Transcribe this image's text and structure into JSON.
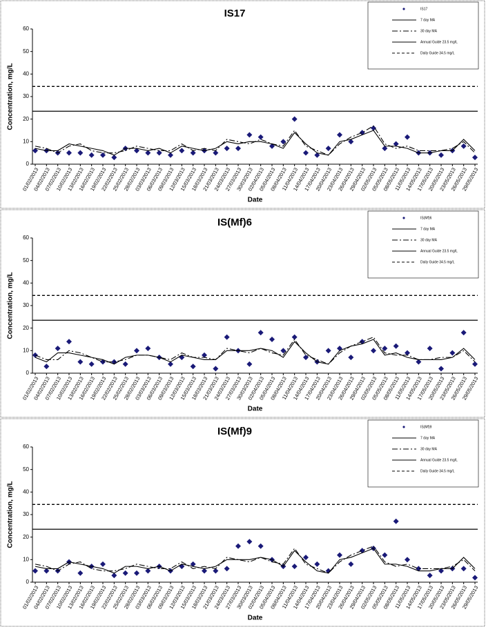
{
  "chart_data": [
    {
      "type": "line",
      "title": "IS17",
      "xlabel": "Date",
      "ylabel": "Concentration, mg/L",
      "categories": [
        "01/02/2013",
        "04/02/2013",
        "07/02/2013",
        "10/02/2013",
        "13/02/2013",
        "16/02/2013",
        "19/02/2013",
        "22/02/2013",
        "25/02/2013",
        "28/02/2013",
        "03/03/2013",
        "06/03/2013",
        "09/03/2013",
        "12/03/2013",
        "15/03/2013",
        "18/03/2013",
        "21/03/2013",
        "24/03/2013",
        "27/03/2013",
        "30/03/2013",
        "02/04/2013",
        "05/04/2013",
        "08/04/2013",
        "11/04/2013",
        "14/04/2013",
        "17/04/2013",
        "20/04/2013",
        "23/04/2013",
        "26/04/2013",
        "29/04/2013",
        "02/05/2013",
        "05/05/2013",
        "08/05/2013",
        "11/05/2013",
        "14/05/2013",
        "17/05/2013",
        "20/05/2013",
        "23/05/2013",
        "26/05/2013",
        "29/05/2013"
      ],
      "ylim": [
        0,
        60
      ],
      "yticks": [
        0,
        10,
        20,
        30,
        40,
        50,
        60
      ],
      "hlines": [
        {
          "name": "Annual Guide 23.5 mg/L",
          "value": 23.5,
          "dash": "none"
        },
        {
          "name": "Daily Guide 34.5 mg/L",
          "value": 34.5,
          "dash": "4 3"
        }
      ],
      "series": [
        {
          "name": "IS17",
          "style": "marker",
          "color": "#1a1a78",
          "values": [
            6,
            6,
            5,
            5,
            5,
            4,
            4,
            3,
            7,
            6,
            5,
            5,
            4,
            6,
            5,
            6,
            5,
            7,
            7,
            13,
            12,
            8,
            10,
            20,
            5,
            4,
            7,
            13,
            10,
            14,
            16,
            7,
            9,
            12,
            5,
            5,
            4,
            6,
            8,
            3
          ]
        },
        {
          "name": "7 day MA",
          "style": "line",
          "color": "#000000",
          "dash": "none",
          "values": [
            7,
            6,
            6,
            9,
            8,
            7,
            6,
            4,
            7,
            7,
            6,
            7,
            5,
            8,
            7,
            6,
            7,
            10,
            9,
            10,
            10,
            9,
            7,
            14,
            9,
            5,
            4,
            10,
            11,
            13,
            15,
            8,
            8,
            7,
            5,
            5,
            6,
            6,
            11,
            6
          ]
        },
        {
          "name": "30 day MA",
          "style": "line",
          "color": "#000000",
          "dash": "8 3 2 3",
          "values": [
            8,
            7,
            5,
            8,
            9,
            6,
            5,
            5,
            6,
            8,
            7,
            6,
            6,
            9,
            6,
            7,
            6,
            11,
            10,
            9,
            11,
            9,
            8,
            15,
            8,
            6,
            4,
            9,
            12,
            14,
            17,
            9,
            7,
            8,
            6,
            6,
            6,
            7,
            10,
            5
          ]
        }
      ]
    },
    {
      "type": "line",
      "title": "IS(Mf)6",
      "xlabel": "Date",
      "ylabel": "Concentration, mg/L",
      "categories": [
        "01/02/2013",
        "04/02/2013",
        "07/02/2013",
        "10/02/2013",
        "13/02/2013",
        "16/02/2013",
        "19/02/2013",
        "22/02/2013",
        "25/02/2013",
        "28/02/2013",
        "03/03/2013",
        "06/03/2013",
        "09/03/2013",
        "12/03/2013",
        "15/03/2013",
        "18/03/2013",
        "21/03/2013",
        "24/03/2013",
        "27/03/2013",
        "30/03/2013",
        "02/04/2013",
        "05/04/2013",
        "08/04/2013",
        "11/04/2013",
        "14/04/2013",
        "17/04/2013",
        "20/04/2013",
        "23/04/2013",
        "26/04/2013",
        "29/04/2013",
        "02/05/2013",
        "05/05/2013",
        "08/05/2013",
        "11/05/2013",
        "14/05/2013",
        "17/05/2013",
        "20/05/2013",
        "23/05/2013",
        "26/05/2013",
        "29/05/2013"
      ],
      "ylim": [
        0,
        60
      ],
      "yticks": [
        0,
        10,
        20,
        30,
        40,
        50,
        60
      ],
      "hlines": [
        {
          "name": "Annual Guide 23.5 mg/L",
          "value": 23.5,
          "dash": "none"
        },
        {
          "name": "Daily Guide 34.5 mg/L",
          "value": 34.5,
          "dash": "4 3"
        }
      ],
      "series": [
        {
          "name": "IS(Mf)6",
          "style": "marker",
          "color": "#1a1a78",
          "values": [
            8,
            3,
            11,
            14,
            5,
            4,
            5,
            5,
            4,
            10,
            11,
            7,
            4,
            7,
            3,
            8,
            2,
            16,
            10,
            4,
            18,
            15,
            10,
            16,
            7,
            5,
            10,
            11,
            7,
            14,
            10,
            11,
            12,
            9,
            5,
            11,
            2,
            9,
            18,
            4
          ]
        },
        {
          "name": "7 day MA",
          "style": "line",
          "color": "#000000",
          "dash": "none",
          "values": [
            7,
            5,
            9,
            9,
            8,
            7,
            6,
            4,
            7,
            8,
            8,
            7,
            5,
            8,
            7,
            6,
            6,
            10,
            10,
            10,
            11,
            10,
            7,
            14,
            9,
            5,
            4,
            10,
            12,
            13,
            15,
            8,
            9,
            7,
            6,
            6,
            6,
            7,
            11,
            6
          ]
        },
        {
          "name": "30 day MA",
          "style": "line",
          "color": "#000000",
          "dash": "8 3 2 3",
          "values": [
            8,
            6,
            6,
            10,
            9,
            7,
            5,
            5,
            6,
            8,
            8,
            7,
            6,
            9,
            7,
            7,
            6,
            11,
            10,
            9,
            11,
            9,
            8,
            15,
            8,
            6,
            4,
            9,
            12,
            14,
            16,
            9,
            8,
            8,
            6,
            6,
            7,
            7,
            10,
            5
          ]
        }
      ]
    },
    {
      "type": "line",
      "title": "IS(Mf)9",
      "xlabel": "Date",
      "ylabel": "Concentration, mg/L",
      "categories": [
        "01/02/2013",
        "04/02/2013",
        "07/02/2013",
        "10/02/2013",
        "13/02/2013",
        "16/02/2013",
        "19/02/2013",
        "22/02/2013",
        "25/02/2013",
        "28/02/2013",
        "03/03/2013",
        "06/03/2013",
        "09/03/2013",
        "12/03/2013",
        "15/03/2013",
        "18/03/2013",
        "21/03/2013",
        "24/03/2013",
        "27/03/2013",
        "30/03/2013",
        "02/04/2013",
        "05/04/2013",
        "08/04/2013",
        "11/04/2013",
        "14/04/2013",
        "17/04/2013",
        "20/04/2013",
        "23/04/2013",
        "26/04/2013",
        "29/04/2013",
        "02/05/2013",
        "05/05/2013",
        "08/05/2013",
        "11/05/2013",
        "14/05/2013",
        "17/05/2013",
        "20/05/2013",
        "23/05/2013",
        "26/05/2013",
        "29/05/2013"
      ],
      "ylim": [
        0,
        60
      ],
      "yticks": [
        0,
        10,
        20,
        30,
        40,
        50,
        60
      ],
      "hlines": [
        {
          "name": "Annual Guide 23.5 mg/L",
          "value": 23.5,
          "dash": "none"
        },
        {
          "name": "Daily Guide 34.5 mg/L",
          "value": 34.5,
          "dash": "4 3"
        }
      ],
      "series": [
        {
          "name": "IS(Mf)9",
          "style": "marker",
          "color": "#1a1a78",
          "values": [
            5,
            5,
            5,
            9,
            4,
            7,
            8,
            3,
            4,
            4,
            5,
            7,
            5,
            7,
            8,
            5,
            5,
            6,
            16,
            18,
            16,
            10,
            7,
            7,
            11,
            8,
            5,
            12,
            8,
            14,
            15,
            12,
            27,
            10,
            6,
            3,
            5,
            6,
            6,
            2
          ]
        },
        {
          "name": "7 day MA",
          "style": "line",
          "color": "#000000",
          "dash": "none",
          "values": [
            7,
            6,
            6,
            9,
            8,
            7,
            6,
            4,
            7,
            7,
            6,
            7,
            5,
            8,
            7,
            6,
            7,
            10,
            10,
            10,
            11,
            10,
            7,
            14,
            9,
            5,
            4,
            10,
            11,
            13,
            15,
            8,
            8,
            7,
            5,
            5,
            6,
            6,
            11,
            6
          ]
        },
        {
          "name": "30 day MA",
          "style": "line",
          "color": "#000000",
          "dash": "8 3 2 3",
          "values": [
            8,
            7,
            5,
            8,
            9,
            6,
            5,
            5,
            6,
            8,
            7,
            6,
            6,
            9,
            6,
            7,
            6,
            11,
            10,
            9,
            11,
            9,
            8,
            15,
            8,
            6,
            4,
            9,
            12,
            14,
            16,
            9,
            7,
            8,
            6,
            6,
            6,
            7,
            10,
            5
          ]
        }
      ]
    }
  ]
}
